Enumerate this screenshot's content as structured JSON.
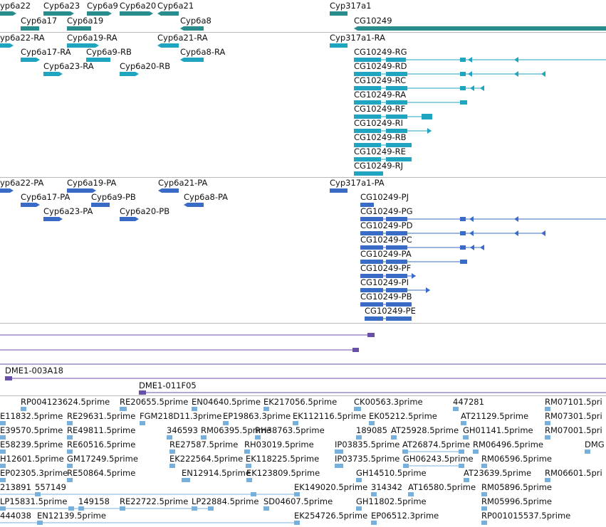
{
  "colors": {
    "gene": "#2a8d8d",
    "transcript": "#1fa5bf",
    "protein": "#3a6bc6",
    "clone": "#6a4fa8",
    "est": "#78b0dc",
    "separator": "#b9b9b9"
  },
  "tracks": {
    "genes": [
      {
        "label": "yp6a22"
      },
      {
        "label": "Cyp6a23"
      },
      {
        "label": "Cyp6a9"
      },
      {
        "label": "Cyp6a20"
      },
      {
        "label": "Cyp6a21"
      },
      {
        "label": "Cyp317a1"
      },
      {
        "label": "Cyp6a17"
      },
      {
        "label": "Cyp6a19"
      },
      {
        "label": "Cyp6a8"
      },
      {
        "label": "CG10249"
      }
    ],
    "transcripts": [
      {
        "label": "yp6a22-RA"
      },
      {
        "label": "Cyp6a19-RA"
      },
      {
        "label": "Cyp6a21-RA"
      },
      {
        "label": "Cyp317a1-RA"
      },
      {
        "label": "Cyp6a17-RA"
      },
      {
        "label": "Cyp6a9-RB"
      },
      {
        "label": "Cyp6a8-RA"
      },
      {
        "label": "CG10249-RG"
      },
      {
        "label": "Cyp6a23-RA"
      },
      {
        "label": "Cyp6a20-RB"
      },
      {
        "label": "CG10249-RD"
      },
      {
        "label": "CG10249-RC"
      },
      {
        "label": "CG10249-RA"
      },
      {
        "label": "CG10249-RF"
      },
      {
        "label": "CG10249-RI"
      },
      {
        "label": "CG10249-RB"
      },
      {
        "label": "CG10249-RE"
      },
      {
        "label": "CG10249-RJ"
      }
    ],
    "proteins": [
      {
        "label": "yp6a22-PA"
      },
      {
        "label": "Cyp6a19-PA"
      },
      {
        "label": "Cyp6a21-PA"
      },
      {
        "label": "Cyp317a1-PA"
      },
      {
        "label": "Cyp6a17-PA"
      },
      {
        "label": "Cyp6a9-PB"
      },
      {
        "label": "Cyp6a8-PA"
      },
      {
        "label": "CG10249-PJ"
      },
      {
        "label": "Cyp6a23-PA"
      },
      {
        "label": "Cyp6a20-PB"
      },
      {
        "label": "CG10249-PG"
      },
      {
        "label": "CG10249-PD"
      },
      {
        "label": "CG10249-PC"
      },
      {
        "label": "CG10249-PA"
      },
      {
        "label": "CG10249-PF"
      },
      {
        "label": "CG10249-PI"
      },
      {
        "label": "CG10249-PB"
      },
      {
        "label": "CG10249-PE"
      }
    ],
    "clones": [
      {
        "label": "DME1-003A18"
      },
      {
        "label": "DME1-011F05"
      }
    ],
    "ests": [
      {
        "label": "RP004123624.5prime"
      },
      {
        "label": "RE20655.5prime"
      },
      {
        "label": "EN04640.5prime"
      },
      {
        "label": "EK217056.5prime"
      },
      {
        "label": "CK00563.3prime"
      },
      {
        "label": "447281"
      },
      {
        "label": "RM07101.5pri"
      },
      {
        "label": "E11832.5prime"
      },
      {
        "label": "RE29631.5prime"
      },
      {
        "label": "FGM218D11.3prime"
      },
      {
        "label": "EP19863.3prime"
      },
      {
        "label": "EK112116.5prime"
      },
      {
        "label": "EK05212.5prime"
      },
      {
        "label": "AT21129.5prime"
      },
      {
        "label": "RM07301.5pri"
      },
      {
        "label": "E39570.5prime"
      },
      {
        "label": "RE49811.5prime"
      },
      {
        "label": "346593"
      },
      {
        "label": "RM06395.5prime"
      },
      {
        "label": "RH38763.5prime"
      },
      {
        "label": "189085"
      },
      {
        "label": "AT25928.5prime"
      },
      {
        "label": "GH01141.5prime"
      },
      {
        "label": "RM07001.5pri"
      },
      {
        "label": "E58239.5prime"
      },
      {
        "label": "RE60516.5prime"
      },
      {
        "label": "RE27587.5prime"
      },
      {
        "label": "RH03019.5prime"
      },
      {
        "label": "IP03835.5prime"
      },
      {
        "label": "AT26874.5prime"
      },
      {
        "label": "RM06496.5prime"
      },
      {
        "label": "DMG"
      },
      {
        "label": "H12601.5prime"
      },
      {
        "label": "GM17249.5prime"
      },
      {
        "label": "EK222564.5prime"
      },
      {
        "label": "EK118225.5prime"
      },
      {
        "label": "IP03735.5prime"
      },
      {
        "label": "GH06243.5prime"
      },
      {
        "label": "RM06596.5prime"
      },
      {
        "label": "EP02305.3prime"
      },
      {
        "label": "RE50864.5prime"
      },
      {
        "label": "EN12914.5prime"
      },
      {
        "label": "EK123809.5prime"
      },
      {
        "label": "GH14510.5prime"
      },
      {
        "label": "AT23639.5prime"
      },
      {
        "label": "RM06601.5pri"
      },
      {
        "label": "213891"
      },
      {
        "label": "557149"
      },
      {
        "label": "EK149020.5prime"
      },
      {
        "label": "314342"
      },
      {
        "label": "AT16580.5prime"
      },
      {
        "label": "RM05896.5prime"
      },
      {
        "label": "LP15831.5prime"
      },
      {
        "label": "149158"
      },
      {
        "label": "RE22722.5prime"
      },
      {
        "label": "LP22884.5prime"
      },
      {
        "label": "SD04607.5prime"
      },
      {
        "label": "GH11802.5prime"
      },
      {
        "label": "RM05996.5prime"
      },
      {
        "label": "444038"
      },
      {
        "label": "EN12139.5prime"
      },
      {
        "label": "EK254726.5prime"
      },
      {
        "label": "EP06512.3prime"
      },
      {
        "label": "RP001015537.5prime"
      }
    ]
  }
}
